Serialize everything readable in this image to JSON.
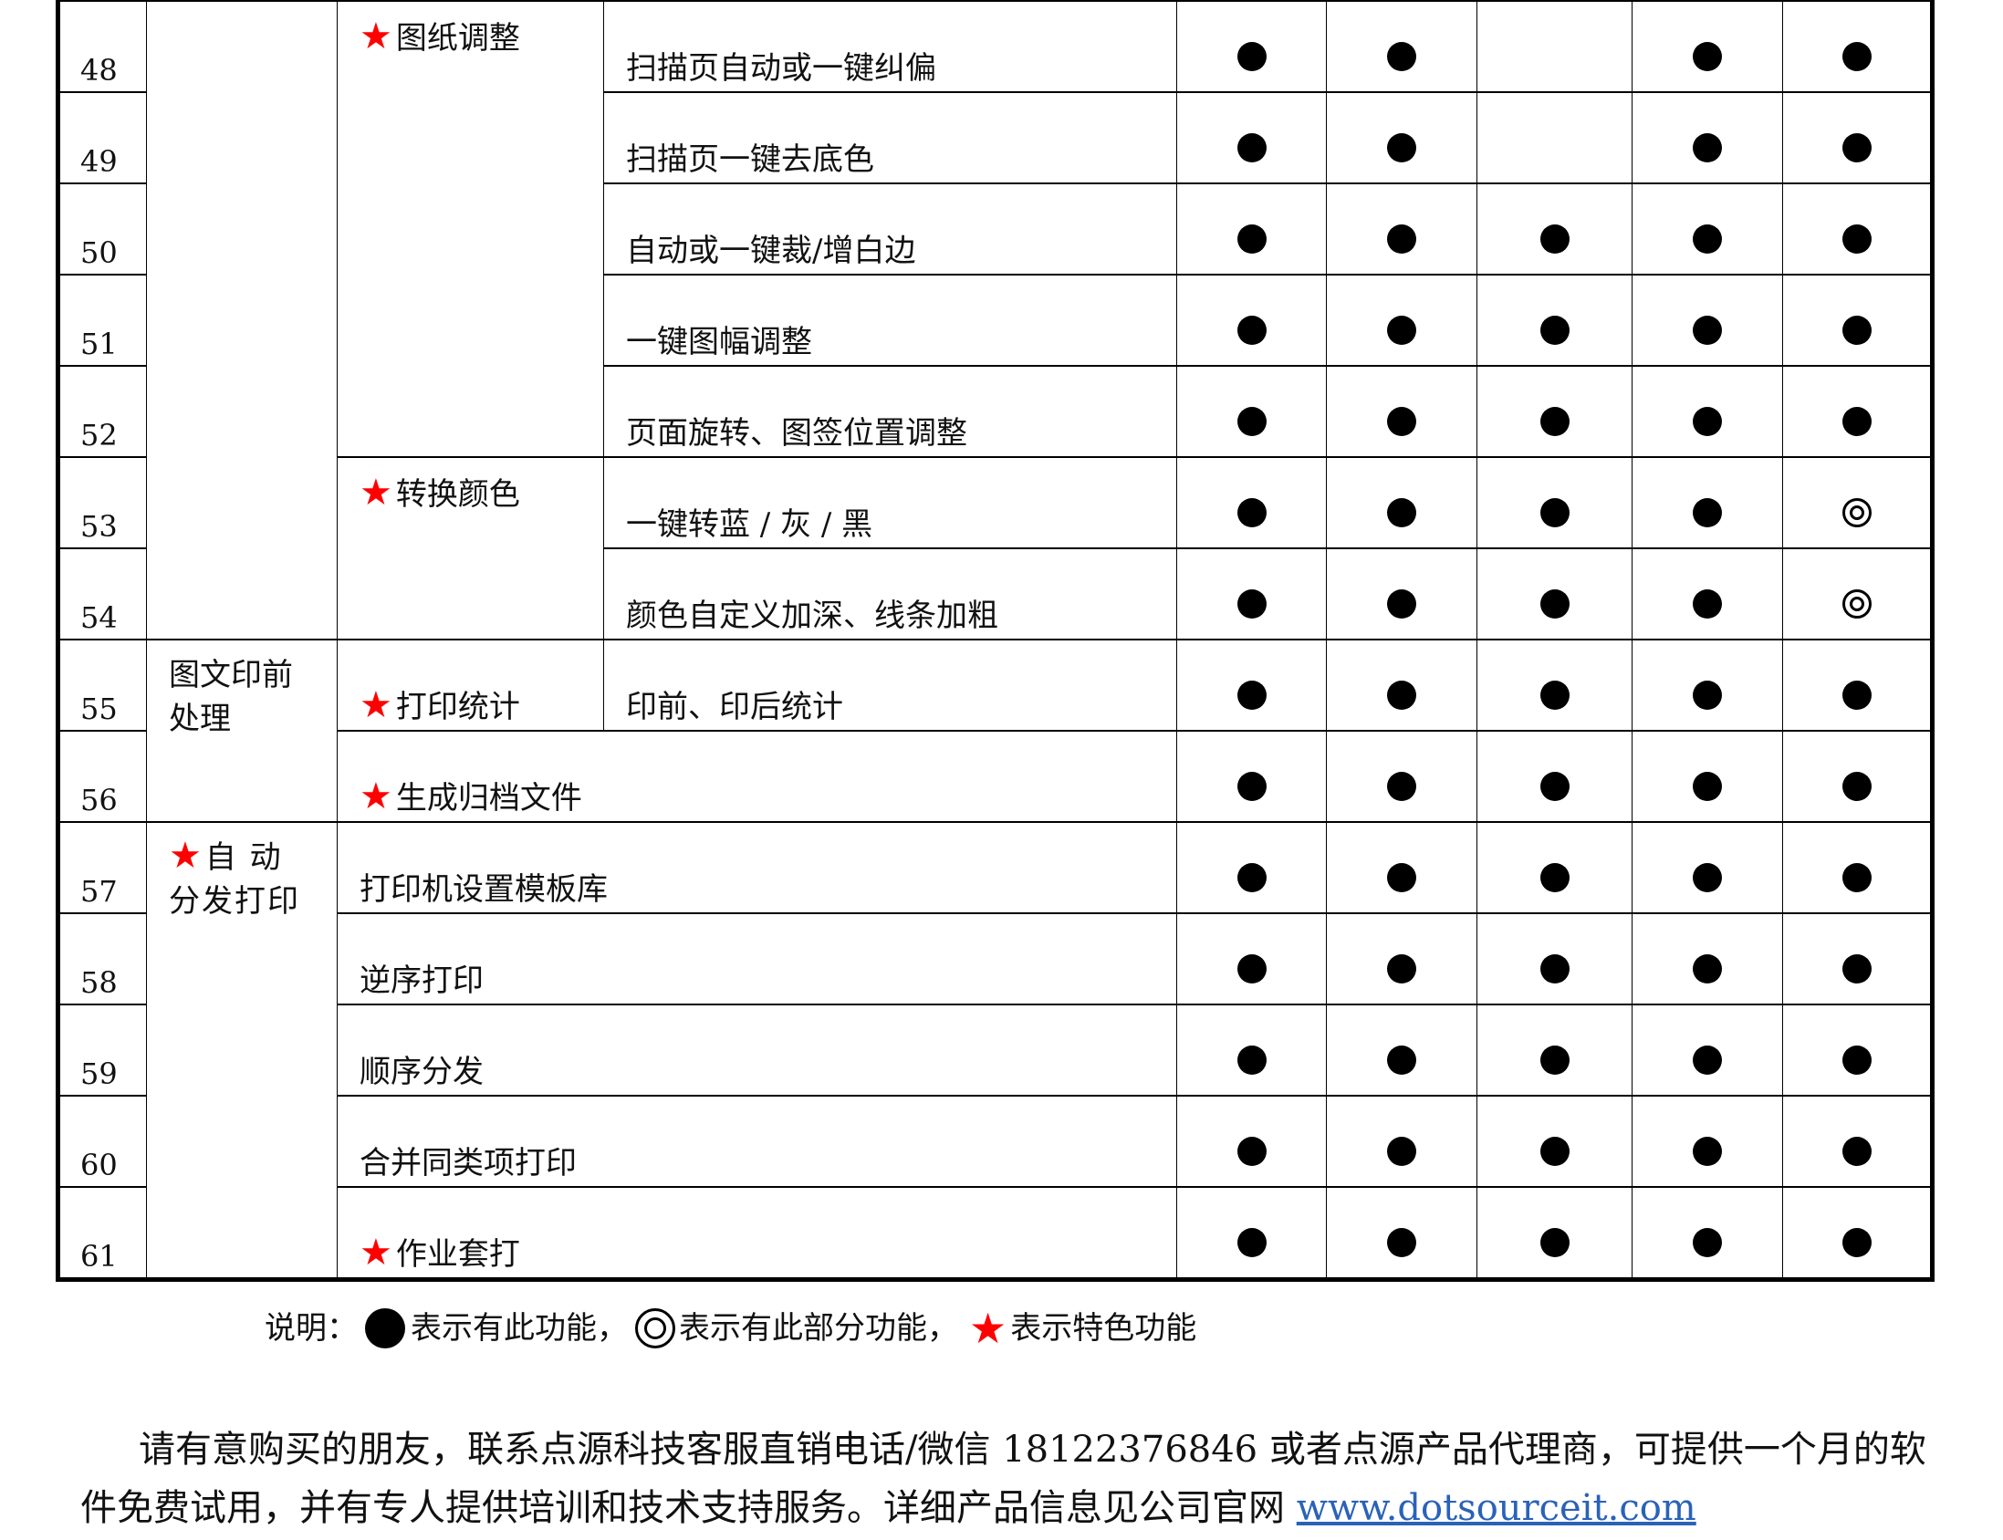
{
  "table": {
    "rows": [
      {
        "num": "48",
        "marks": [
          "full",
          "full",
          "none",
          "full",
          "full"
        ]
      },
      {
        "num": "49",
        "marks": [
          "full",
          "full",
          "none",
          "full",
          "full"
        ]
      },
      {
        "num": "50",
        "marks": [
          "full",
          "full",
          "full",
          "full",
          "full"
        ]
      },
      {
        "num": "51",
        "marks": [
          "full",
          "full",
          "full",
          "full",
          "full"
        ]
      },
      {
        "num": "52",
        "marks": [
          "full",
          "full",
          "full",
          "full",
          "full"
        ]
      },
      {
        "num": "53",
        "marks": [
          "full",
          "full",
          "full",
          "full",
          "partial"
        ]
      },
      {
        "num": "54",
        "marks": [
          "full",
          "full",
          "full",
          "full",
          "partial"
        ]
      },
      {
        "num": "55",
        "marks": [
          "full",
          "full",
          "full",
          "full",
          "full"
        ]
      },
      {
        "num": "56",
        "marks": [
          "full",
          "full",
          "full",
          "full",
          "full"
        ]
      },
      {
        "num": "57",
        "marks": [
          "full",
          "full",
          "full",
          "full",
          "full"
        ]
      },
      {
        "num": "58",
        "marks": [
          "full",
          "full",
          "full",
          "full",
          "full"
        ]
      },
      {
        "num": "59",
        "marks": [
          "full",
          "full",
          "full",
          "full",
          "full"
        ]
      },
      {
        "num": "60",
        "marks": [
          "full",
          "full",
          "full",
          "full",
          "full"
        ]
      },
      {
        "num": "61",
        "marks": [
          "full",
          "full",
          "full",
          "full",
          "full"
        ]
      }
    ],
    "groups": {
      "prepress": "图文印前处理",
      "auto_print": "自 动 分发打印"
    },
    "features": {
      "paper_adjust": "图纸调整",
      "convert_color": "转换颜色",
      "print_stats": "打印统计",
      "archive": "生成归档文件",
      "job_overlay": "作业套打"
    },
    "descriptions": {
      "r48": "扫描页自动或一键纠偏",
      "r49": "扫描页一键去底色",
      "r50": "自动或一键裁/增白边",
      "r51": "一键图幅调整",
      "r52": "页面旋转、图签位置调整",
      "r53": "一键转蓝 / 灰 / 黑",
      "r54": "颜色自定义加深、线条加粗",
      "r55": "印前、印后统计",
      "r57": "打印机设置模板库",
      "r58": "逆序打印",
      "r59": "顺序分发",
      "r60": "合并同类项打印"
    }
  },
  "legend": {
    "prefix": "说明：",
    "full": "表示有此功能，",
    "partial": "表示有此部分功能，",
    "star": "表示特色功能"
  },
  "paragraph": {
    "text": "请有意购买的朋友，联系点源科技客服直销电话/微信 18122376846 或者点源产品代理商，可提供一个月的软件免费试用，并有专人提供培训和技术支持服务。详细产品信息见公司官网 ",
    "link": "www.dotsourceit.com"
  },
  "colors": {
    "star": "#ff0000",
    "link": "#2a62b8"
  }
}
